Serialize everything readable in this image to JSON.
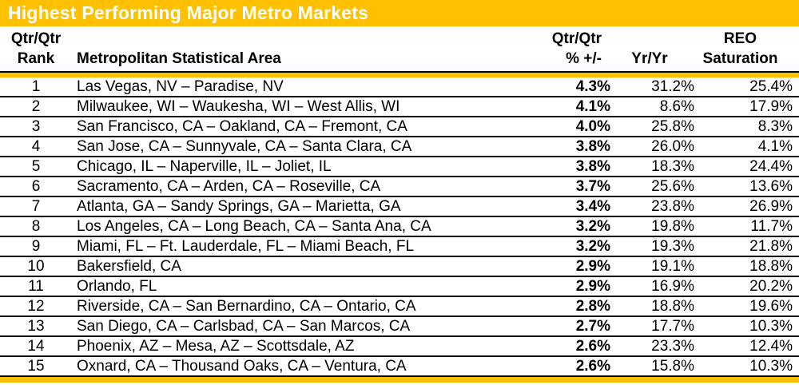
{
  "title": "Highest Performing Major Metro Markets",
  "header": {
    "rank": [
      "Qtr/Qtr",
      "Rank"
    ],
    "msa": "Metropolitan Statistical Area",
    "qtr": [
      "Qtr/Qtr",
      "% +/-"
    ],
    "yr": "Yr/Yr",
    "reo": [
      "REO",
      "Saturation"
    ]
  },
  "colors": {
    "gold": "#FFC000",
    "title_text": "#FFFFFF",
    "text": "#000000",
    "line": "#000000",
    "bg": "#FFFFFF"
  },
  "chart_data": {
    "type": "table",
    "title": "Highest Performing Major Metro Markets",
    "columns": [
      "Qtr/Qtr Rank",
      "Metropolitan Statistical Area",
      "Qtr/Qtr % +/-",
      "Yr/Yr",
      "REO Saturation"
    ],
    "rows": [
      [
        1,
        "Las Vegas, NV – Paradise, NV",
        "4.3%",
        "31.2%",
        "25.4%"
      ],
      [
        2,
        "Milwaukee, WI – Waukesha, WI – West Allis, WI",
        "4.1%",
        "8.6%",
        "17.9%"
      ],
      [
        3,
        "San Francisco, CA – Oakland, CA – Fremont, CA",
        "4.0%",
        "25.8%",
        "8.3%"
      ],
      [
        4,
        "San Jose, CA – Sunnyvale, CA – Santa Clara, CA",
        "3.8%",
        "26.0%",
        "4.1%"
      ],
      [
        5,
        "Chicago, IL – Naperville, IL – Joliet, IL",
        "3.8%",
        "18.3%",
        "24.4%"
      ],
      [
        6,
        "Sacramento, CA – Arden, CA – Roseville, CA",
        "3.7%",
        "25.6%",
        "13.6%"
      ],
      [
        7,
        "Atlanta, GA – Sandy Springs, GA – Marietta, GA",
        "3.4%",
        "23.8%",
        "26.9%"
      ],
      [
        8,
        "Los Angeles, CA – Long Beach, CA – Santa Ana, CA",
        "3.2%",
        "19.8%",
        "11.7%"
      ],
      [
        9,
        "Miami, FL – Ft. Lauderdale, FL – Miami Beach, FL",
        "3.2%",
        "19.3%",
        "21.8%"
      ],
      [
        10,
        "Bakersfield, CA",
        "2.9%",
        "19.1%",
        "18.8%"
      ],
      [
        11,
        "Orlando, FL",
        "2.9%",
        "16.9%",
        "20.2%"
      ],
      [
        12,
        "Riverside, CA – San Bernardino, CA – Ontario, CA",
        "2.8%",
        "18.8%",
        "19.6%"
      ],
      [
        13,
        "San Diego, CA – Carlsbad, CA – San Marcos, CA",
        "2.7%",
        "17.7%",
        "10.3%"
      ],
      [
        14,
        "Phoenix, AZ – Mesa, AZ – Scottsdale, AZ",
        "2.6%",
        "23.3%",
        "12.4%"
      ],
      [
        15,
        "Oxnard, CA – Thousand Oaks, CA – Ventura, CA",
        "2.6%",
        "15.8%",
        "10.3%"
      ]
    ]
  }
}
